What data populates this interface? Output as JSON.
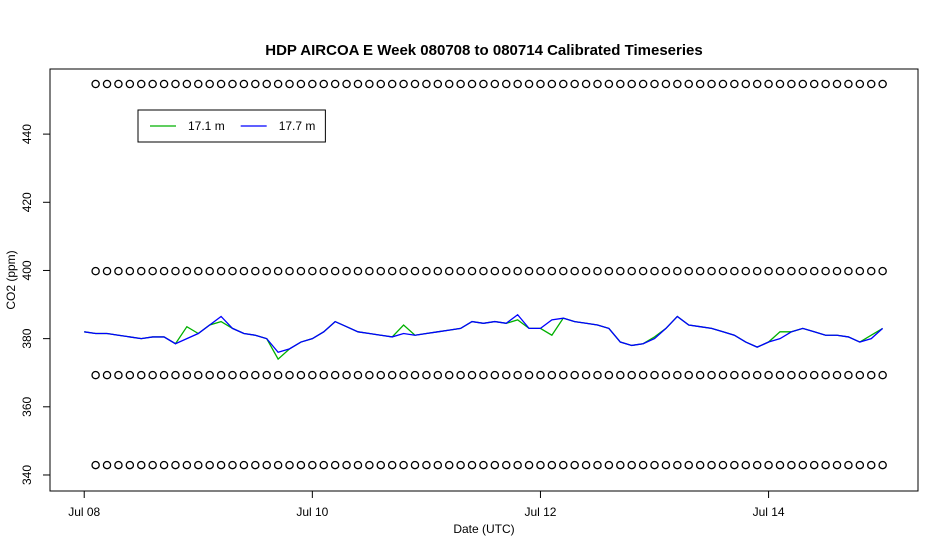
{
  "chart_data": {
    "type": "line",
    "title": "HDP AIRCOA E  Week 080708 to 080714  Calibrated Timeseries",
    "x_label": "Date (UTC)",
    "y_label": "CO2 (ppm)",
    "xlim": [
      -0.3,
      7.31
    ],
    "ylim": [
      335.3,
      459.1
    ],
    "xticks": [
      {
        "value": 0,
        "label": "Jul 08"
      },
      {
        "value": 2,
        "label": "Jul 10"
      },
      {
        "value": 4,
        "label": "Jul 12"
      },
      {
        "value": 6,
        "label": "Jul 14"
      }
    ],
    "yticks": [
      340,
      360,
      380,
      400,
      420,
      440
    ],
    "legend": "top-left",
    "series": [
      {
        "marker": "circle",
        "color": "#000000",
        "x": [
          0.1,
          0.2,
          0.3,
          0.4,
          0.5,
          0.6,
          0.7,
          0.8,
          0.9,
          1.0,
          1.1,
          1.2,
          1.3,
          1.4,
          1.5,
          1.6,
          1.7,
          1.8,
          1.9,
          2.0,
          2.1,
          2.2,
          2.3,
          2.4,
          2.5,
          2.6,
          2.7,
          2.8,
          2.9,
          3.0,
          3.1,
          3.2,
          3.3,
          3.4,
          3.5,
          3.6,
          3.7,
          3.8,
          3.9,
          4.0,
          4.1,
          4.2,
          4.3,
          4.4,
          4.5,
          4.6,
          4.7,
          4.8,
          4.9,
          5.0,
          5.1,
          5.2,
          5.3,
          5.4,
          5.5,
          5.6,
          5.7,
          5.8,
          5.9,
          6.0,
          6.1,
          6.2,
          6.3,
          6.4,
          6.5,
          6.6,
          6.7,
          6.8,
          6.9,
          7.0
        ],
        "values": [
          454.7,
          454.7,
          454.7,
          454.7,
          454.7,
          454.7,
          454.7,
          454.7,
          454.7,
          454.7,
          454.7,
          454.7,
          454.7,
          454.7,
          454.7,
          454.7,
          454.7,
          454.7,
          454.7,
          454.7,
          454.7,
          454.7,
          454.7,
          454.7,
          454.7,
          454.7,
          454.7,
          454.7,
          454.7,
          454.7,
          454.7,
          454.7,
          454.7,
          454.7,
          454.7,
          454.7,
          454.7,
          454.7,
          454.7,
          454.7,
          454.7,
          454.7,
          454.7,
          454.7,
          454.7,
          454.7,
          454.7,
          454.7,
          454.7,
          454.7,
          454.7,
          454.7,
          454.7,
          454.7,
          454.7,
          454.7,
          454.7,
          454.7,
          454.7,
          454.7,
          454.7,
          454.7,
          454.7,
          454.7,
          454.7,
          454.7,
          454.7,
          454.7,
          454.7,
          454.7
        ]
      },
      {
        "marker": "circle",
        "color": "#000000",
        "x": [
          0.1,
          0.2,
          0.3,
          0.4,
          0.5,
          0.6,
          0.7,
          0.8,
          0.9,
          1.0,
          1.1,
          1.2,
          1.3,
          1.4,
          1.5,
          1.6,
          1.7,
          1.8,
          1.9,
          2.0,
          2.1,
          2.2,
          2.3,
          2.4,
          2.5,
          2.6,
          2.7,
          2.8,
          2.9,
          3.0,
          3.1,
          3.2,
          3.3,
          3.4,
          3.5,
          3.6,
          3.7,
          3.8,
          3.9,
          4.0,
          4.1,
          4.2,
          4.3,
          4.4,
          4.5,
          4.6,
          4.7,
          4.8,
          4.9,
          5.0,
          5.1,
          5.2,
          5.3,
          5.4,
          5.5,
          5.6,
          5.7,
          5.8,
          5.9,
          6.0,
          6.1,
          6.2,
          6.3,
          6.4,
          6.5,
          6.6,
          6.7,
          6.8,
          6.9,
          7.0
        ],
        "values": [
          399.8,
          399.8,
          399.8,
          399.8,
          399.8,
          399.8,
          399.8,
          399.8,
          399.8,
          399.8,
          399.8,
          399.8,
          399.8,
          399.8,
          399.8,
          399.8,
          399.8,
          399.8,
          399.8,
          399.8,
          399.8,
          399.8,
          399.8,
          399.8,
          399.8,
          399.8,
          399.8,
          399.8,
          399.8,
          399.8,
          399.8,
          399.8,
          399.8,
          399.8,
          399.8,
          399.8,
          399.8,
          399.8,
          399.8,
          399.8,
          399.8,
          399.8,
          399.8,
          399.8,
          399.8,
          399.8,
          399.8,
          399.8,
          399.8,
          399.8,
          399.8,
          399.8,
          399.8,
          399.8,
          399.8,
          399.8,
          399.8,
          399.8,
          399.8,
          399.8,
          399.8,
          399.8,
          399.8,
          399.8,
          399.8,
          399.8,
          399.8,
          399.8,
          399.8,
          399.8
        ]
      },
      {
        "marker": "circle",
        "color": "#000000",
        "x": [
          0.1,
          0.2,
          0.3,
          0.4,
          0.5,
          0.6,
          0.7,
          0.8,
          0.9,
          1.0,
          1.1,
          1.2,
          1.3,
          1.4,
          1.5,
          1.6,
          1.7,
          1.8,
          1.9,
          2.0,
          2.1,
          2.2,
          2.3,
          2.4,
          2.5,
          2.6,
          2.7,
          2.8,
          2.9,
          3.0,
          3.1,
          3.2,
          3.3,
          3.4,
          3.5,
          3.6,
          3.7,
          3.8,
          3.9,
          4.0,
          4.1,
          4.2,
          4.3,
          4.4,
          4.5,
          4.6,
          4.7,
          4.8,
          4.9,
          5.0,
          5.1,
          5.2,
          5.3,
          5.4,
          5.5,
          5.6,
          5.7,
          5.8,
          5.9,
          6.0,
          6.1,
          6.2,
          6.3,
          6.4,
          6.5,
          6.6,
          6.7,
          6.8,
          6.9,
          7.0
        ],
        "values": [
          369.3,
          369.3,
          369.3,
          369.3,
          369.3,
          369.3,
          369.3,
          369.3,
          369.3,
          369.3,
          369.3,
          369.3,
          369.3,
          369.3,
          369.3,
          369.3,
          369.3,
          369.3,
          369.3,
          369.3,
          369.3,
          369.3,
          369.3,
          369.3,
          369.3,
          369.3,
          369.3,
          369.3,
          369.3,
          369.3,
          369.3,
          369.3,
          369.3,
          369.3,
          369.3,
          369.3,
          369.3,
          369.3,
          369.3,
          369.3,
          369.3,
          369.3,
          369.3,
          369.3,
          369.3,
          369.3,
          369.3,
          369.3,
          369.3,
          369.3,
          369.3,
          369.3,
          369.3,
          369.3,
          369.3,
          369.3,
          369.3,
          369.3,
          369.3,
          369.3,
          369.3,
          369.3,
          369.3,
          369.3,
          369.3,
          369.3,
          369.3,
          369.3,
          369.3,
          369.3
        ]
      },
      {
        "marker": "circle",
        "color": "#000000",
        "x": [
          0.1,
          0.2,
          0.3,
          0.4,
          0.5,
          0.6,
          0.7,
          0.8,
          0.9,
          1.0,
          1.1,
          1.2,
          1.3,
          1.4,
          1.5,
          1.6,
          1.7,
          1.8,
          1.9,
          2.0,
          2.1,
          2.2,
          2.3,
          2.4,
          2.5,
          2.6,
          2.7,
          2.8,
          2.9,
          3.0,
          3.1,
          3.2,
          3.3,
          3.4,
          3.5,
          3.6,
          3.7,
          3.8,
          3.9,
          4.0,
          4.1,
          4.2,
          4.3,
          4.4,
          4.5,
          4.6,
          4.7,
          4.8,
          4.9,
          5.0,
          5.1,
          5.2,
          5.3,
          5.4,
          5.5,
          5.6,
          5.7,
          5.8,
          5.9,
          6.0,
          6.1,
          6.2,
          6.3,
          6.4,
          6.5,
          6.6,
          6.7,
          6.8,
          6.9,
          7.0
        ],
        "values": [
          342.9,
          342.9,
          342.9,
          342.9,
          342.9,
          342.9,
          342.9,
          342.9,
          342.9,
          342.9,
          342.9,
          342.9,
          342.9,
          342.9,
          342.9,
          342.9,
          342.9,
          342.9,
          342.9,
          342.9,
          342.9,
          342.9,
          342.9,
          342.9,
          342.9,
          342.9,
          342.9,
          342.9,
          342.9,
          342.9,
          342.9,
          342.9,
          342.9,
          342.9,
          342.9,
          342.9,
          342.9,
          342.9,
          342.9,
          342.9,
          342.9,
          342.9,
          342.9,
          342.9,
          342.9,
          342.9,
          342.9,
          342.9,
          342.9,
          342.9,
          342.9,
          342.9,
          342.9,
          342.9,
          342.9,
          342.9,
          342.9,
          342.9,
          342.9,
          342.9,
          342.9,
          342.9,
          342.9,
          342.9,
          342.9,
          342.9,
          342.9,
          342.9,
          342.9,
          342.9
        ]
      },
      {
        "name": "17.1 m",
        "marker": "line",
        "color": "#00b000",
        "x": [
          0.0,
          0.1,
          0.2,
          0.3,
          0.4,
          0.5,
          0.6,
          0.7,
          0.8,
          0.9,
          1.0,
          1.1,
          1.2,
          1.3,
          1.4,
          1.5,
          1.6,
          1.7,
          1.8,
          1.9,
          2.0,
          2.1,
          2.2,
          2.3,
          2.4,
          2.5,
          2.6,
          2.7,
          2.8,
          2.9,
          3.0,
          3.1,
          3.2,
          3.3,
          3.4,
          3.5,
          3.6,
          3.7,
          3.8,
          3.9,
          4.0,
          4.1,
          4.2,
          4.3,
          4.4,
          4.5,
          4.6,
          4.7,
          4.8,
          4.9,
          5.0,
          5.1,
          5.2,
          5.3,
          5.4,
          5.5,
          5.6,
          5.7,
          5.8,
          5.9,
          6.0,
          6.1,
          6.2,
          6.3,
          6.4,
          6.5,
          6.6,
          6.7,
          6.8,
          6.9,
          7.0
        ],
        "values": [
          382,
          381.5,
          381.5,
          381,
          380.5,
          380,
          380.5,
          380.5,
          378.5,
          383.5,
          381.5,
          384,
          385,
          383,
          381.5,
          381,
          380,
          374,
          377,
          379,
          380,
          382,
          385,
          383.5,
          382,
          381.5,
          381,
          380.5,
          384,
          381,
          381.5,
          382,
          382.5,
          383,
          385,
          384.5,
          385,
          384.5,
          385.5,
          383,
          383,
          381,
          386,
          385,
          384.5,
          384,
          383,
          379,
          378,
          378.5,
          380.5,
          383,
          386.5,
          384,
          383.5,
          383,
          382,
          381,
          379,
          377.5,
          379,
          382,
          382,
          383,
          382,
          381,
          381,
          380.5,
          379,
          381,
          383
        ]
      },
      {
        "name": "17.7 m",
        "marker": "line",
        "color": "#0000ff",
        "x": [
          0.0,
          0.1,
          0.2,
          0.3,
          0.4,
          0.5,
          0.6,
          0.7,
          0.8,
          0.9,
          1.0,
          1.1,
          1.2,
          1.3,
          1.4,
          1.5,
          1.6,
          1.7,
          1.8,
          1.9,
          2.0,
          2.1,
          2.2,
          2.3,
          2.4,
          2.5,
          2.6,
          2.7,
          2.8,
          2.9,
          3.0,
          3.1,
          3.2,
          3.3,
          3.4,
          3.5,
          3.6,
          3.7,
          3.8,
          3.9,
          4.0,
          4.1,
          4.2,
          4.3,
          4.4,
          4.5,
          4.6,
          4.7,
          4.8,
          4.9,
          5.0,
          5.1,
          5.2,
          5.3,
          5.4,
          5.5,
          5.6,
          5.7,
          5.8,
          5.9,
          6.0,
          6.1,
          6.2,
          6.3,
          6.4,
          6.5,
          6.6,
          6.7,
          6.8,
          6.9,
          7.0
        ],
        "values": [
          382,
          381.5,
          381.5,
          381,
          380.5,
          380,
          380.5,
          380.5,
          378.5,
          380,
          381.5,
          384,
          386.5,
          383,
          381.5,
          381,
          380,
          376,
          377,
          379,
          380,
          382,
          385,
          383.5,
          382,
          381.5,
          381,
          380.5,
          381.5,
          381,
          381.5,
          382,
          382.5,
          383,
          385,
          384.5,
          385,
          384.5,
          387,
          383,
          383,
          385.5,
          386,
          385,
          384.5,
          384,
          383,
          379,
          378,
          378.5,
          380,
          383,
          386.5,
          384,
          383.5,
          383,
          382,
          381,
          379,
          377.5,
          379,
          380,
          382,
          383,
          382,
          381,
          381,
          380.5,
          379,
          380,
          383
        ]
      }
    ]
  }
}
